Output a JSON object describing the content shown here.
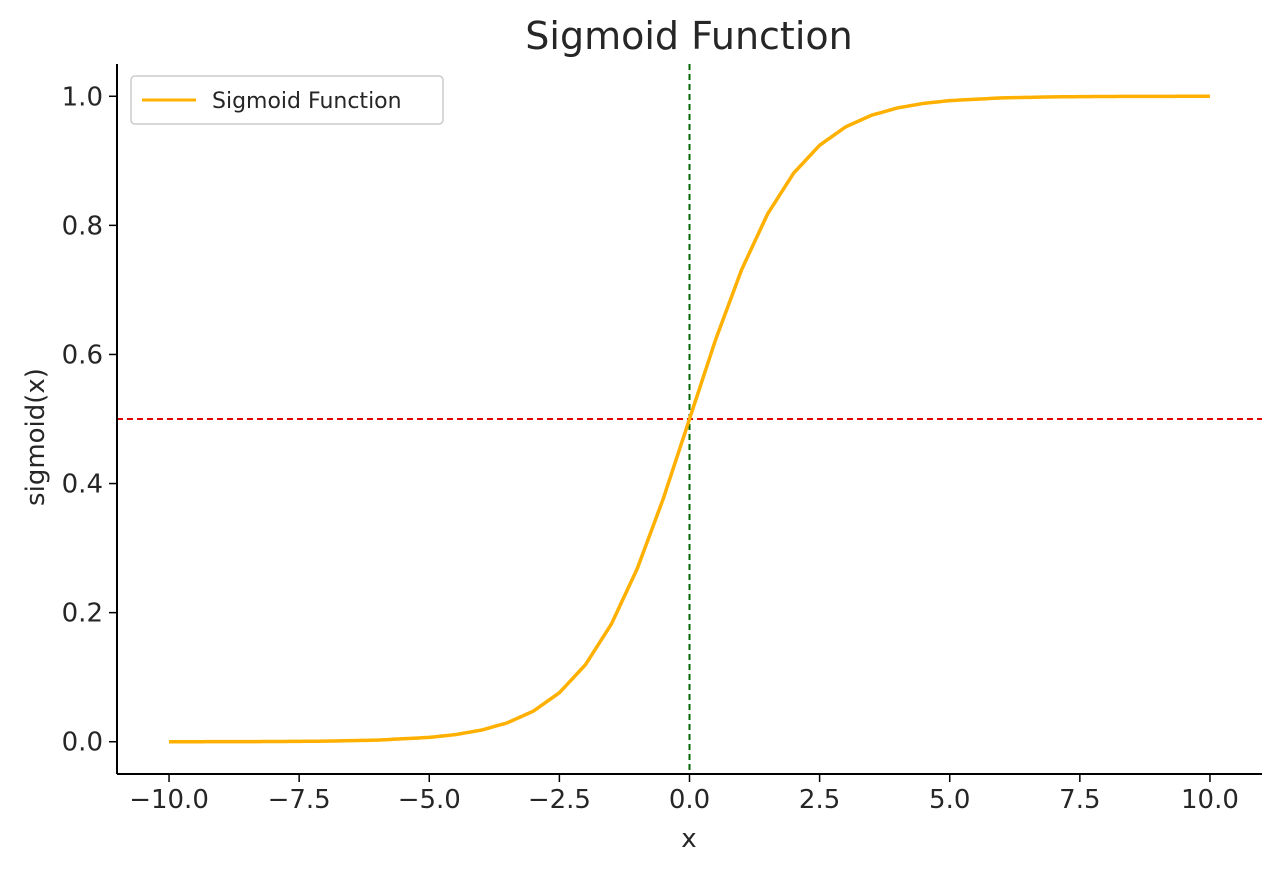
{
  "chart_data": {
    "type": "line",
    "title": "Sigmoid Function",
    "xlabel": "x",
    "ylabel": "sigmoid(x)",
    "xlim": [
      -11.0,
      11.0
    ],
    "ylim": [
      -0.05,
      1.05
    ],
    "x_ticks": [
      -10.0,
      -7.5,
      -5.0,
      -2.5,
      0.0,
      2.5,
      5.0,
      7.5,
      10.0
    ],
    "x_tick_labels": [
      "−10.0",
      "−7.5",
      "−5.0",
      "−2.5",
      "0.0",
      "2.5",
      "5.0",
      "7.5",
      "10.0"
    ],
    "y_ticks": [
      0.0,
      0.2,
      0.4,
      0.6,
      0.8,
      1.0
    ],
    "y_tick_labels": [
      "0.0",
      "0.2",
      "0.4",
      "0.6",
      "0.8",
      "1.0"
    ],
    "grid": false,
    "legend_position": "top-left",
    "series": [
      {
        "name": "Sigmoid Function",
        "color": "#ffb000",
        "x": [
          -10,
          -9,
          -8,
          -7,
          -6,
          -5,
          -4.5,
          -4,
          -3.5,
          -3,
          -2.5,
          -2,
          -1.5,
          -1,
          -0.5,
          0,
          0.5,
          1,
          1.5,
          2,
          2.5,
          3,
          3.5,
          4,
          4.5,
          5,
          6,
          7,
          8,
          9,
          10
        ],
        "y": [
          0.0,
          0.0001,
          0.0003,
          0.0009,
          0.0025,
          0.0067,
          0.011,
          0.018,
          0.0293,
          0.0474,
          0.0759,
          0.1192,
          0.1824,
          0.2689,
          0.3775,
          0.5,
          0.6225,
          0.7311,
          0.8176,
          0.8808,
          0.9241,
          0.9526,
          0.9707,
          0.982,
          0.989,
          0.9933,
          0.9975,
          0.9991,
          0.9997,
          0.9999,
          1.0
        ]
      }
    ],
    "reference_lines": [
      {
        "orientation": "horizontal",
        "value": 0.5,
        "color": "#e00000",
        "style": "dashed"
      },
      {
        "orientation": "vertical",
        "value": 0.0,
        "color": "#006400",
        "style": "dashed"
      }
    ]
  }
}
